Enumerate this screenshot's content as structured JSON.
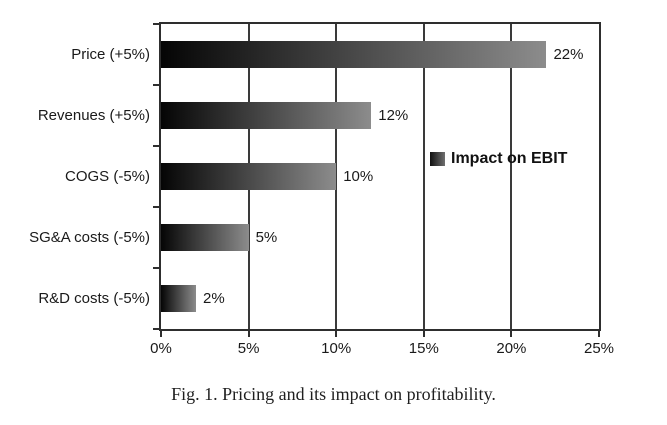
{
  "figure": {
    "caption": "Fig. 1. Pricing and its impact on profitability."
  },
  "chart_data": {
    "type": "bar",
    "orientation": "horizontal",
    "title": "",
    "categories": [
      "Price (+5%)",
      "Revenues (+5%)",
      "COGS (-5%)",
      "SG&A costs (-5%)",
      "R&D costs (-5%)"
    ],
    "values": [
      22,
      12,
      10,
      5,
      2
    ],
    "value_labels": [
      "22%",
      "12%",
      "10%",
      "5%",
      "2%"
    ],
    "xlim": [
      0,
      25
    ],
    "x_tick_values": [
      0,
      5,
      10,
      15,
      20,
      25
    ],
    "x_tick_labels": [
      "0%",
      "5%",
      "10%",
      "15%",
      "20%",
      "25%"
    ],
    "gridline_values": [
      5,
      10,
      15,
      20
    ],
    "grid": true,
    "legend": {
      "label": "Impact on EBIT",
      "position": "middle-right"
    },
    "colors": {
      "bar_gradient_start": "#050505",
      "bar_gradient_end": "#8c8c8c",
      "frame": "#2e2e2e",
      "gridline": "#3a3a3a",
      "text": "#1a1a1a"
    }
  }
}
